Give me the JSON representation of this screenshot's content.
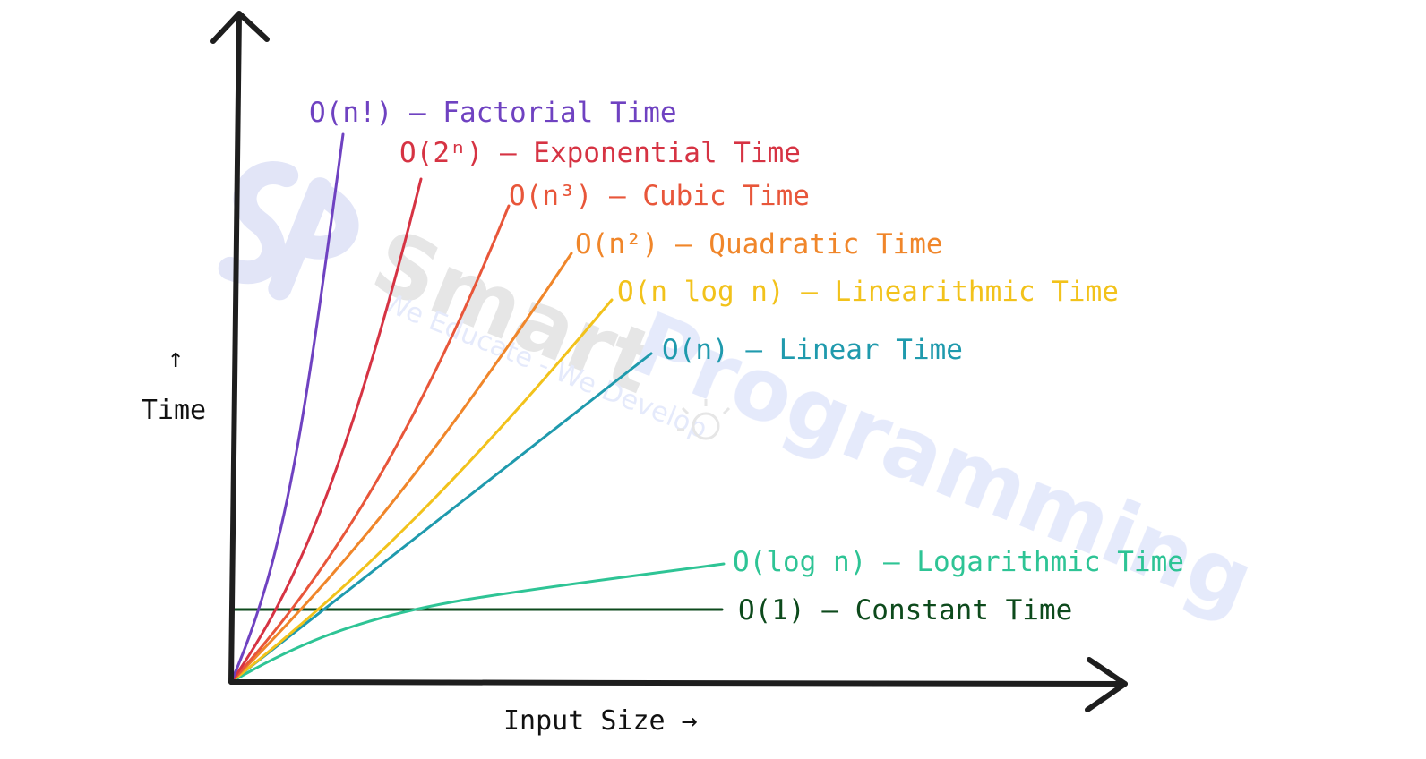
{
  "axes": {
    "y_label": "Time",
    "y_arrow": "↑",
    "x_label": "Input Size →"
  },
  "watermark": {
    "title_part1": "Smart",
    "title_part2": "Programming",
    "tagline": "We Educate - We Develop"
  },
  "curves": [
    {
      "id": "factorial",
      "label": "O(n!) – Factorial Time",
      "color": "#6f42c1"
    },
    {
      "id": "exponential",
      "label": "O(2ⁿ) – Exponential Time",
      "color": "#d63343"
    },
    {
      "id": "cubic",
      "label": "O(n³) – Cubic Time",
      "color": "#e8563a"
    },
    {
      "id": "quadratic",
      "label": "O(n²) – Quadratic Time",
      "color": "#f0862a"
    },
    {
      "id": "linearithmic",
      "label": "O(n log n) – Linearithmic Time",
      "color": "#f2c21b"
    },
    {
      "id": "linear",
      "label": "O(n) – Linear Time",
      "color": "#1f9aad"
    },
    {
      "id": "logarithmic",
      "label": "O(log n) – Logarithmic Time",
      "color": "#2ec495"
    },
    {
      "id": "constant",
      "label": "O(1) – Constant Time",
      "color": "#0d4a1c"
    }
  ]
}
